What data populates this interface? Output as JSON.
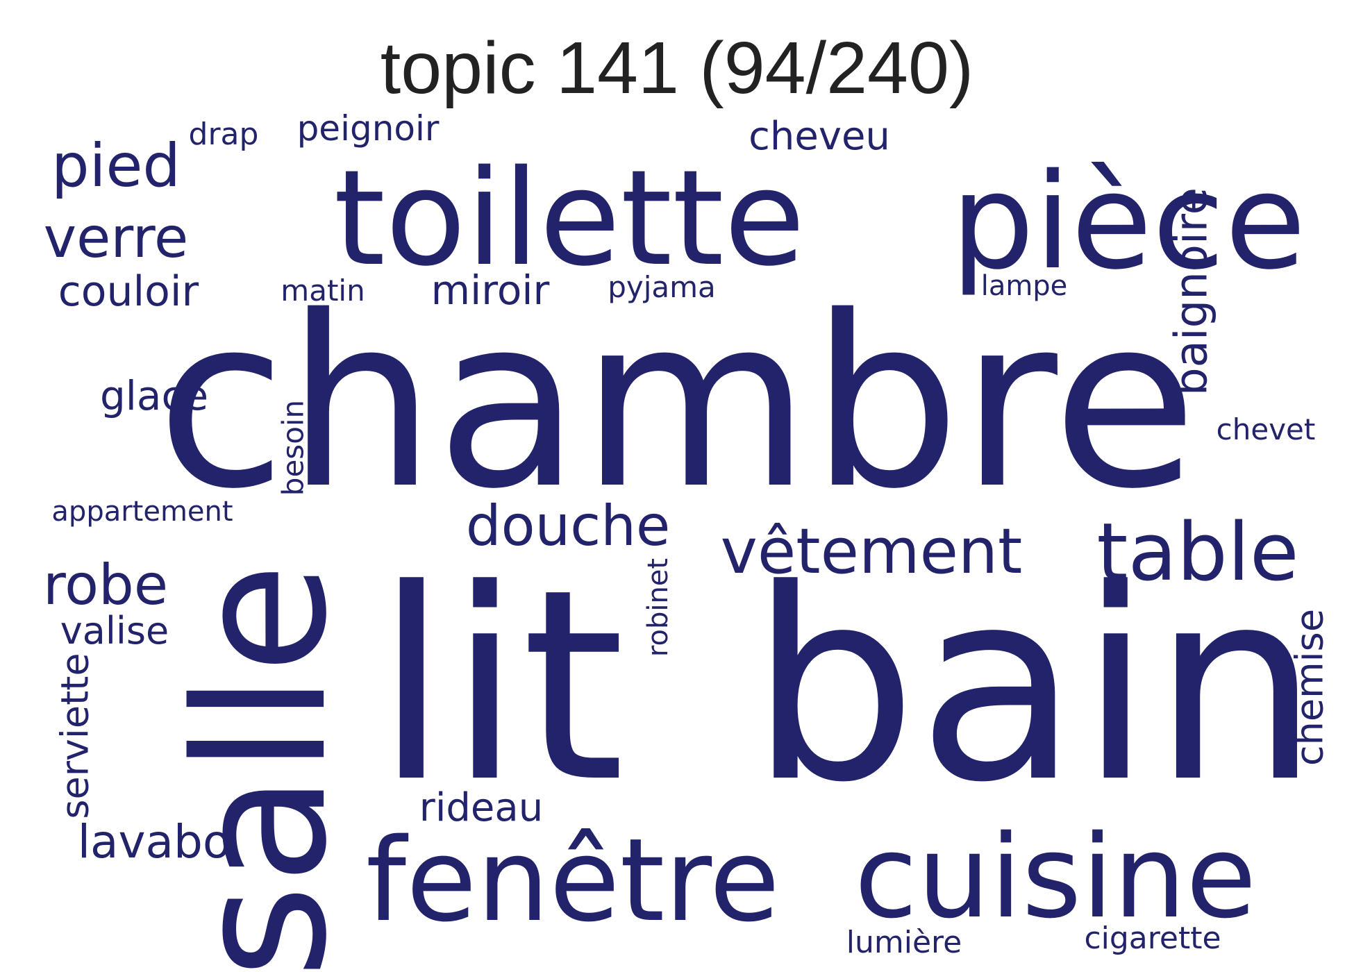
{
  "title": "topic 141 (94/240)",
  "word_color": "#23236b",
  "words": [
    {
      "text": "chambre",
      "orientation": "horizontal"
    },
    {
      "text": "lit",
      "orientation": "horizontal"
    },
    {
      "text": "bain",
      "orientation": "horizontal"
    },
    {
      "text": "salle",
      "orientation": "vertical"
    },
    {
      "text": "toilette",
      "orientation": "horizontal"
    },
    {
      "text": "pièce",
      "orientation": "horizontal"
    },
    {
      "text": "fenêtre",
      "orientation": "horizontal"
    },
    {
      "text": "cuisine",
      "orientation": "horizontal"
    },
    {
      "text": "table",
      "orientation": "horizontal"
    },
    {
      "text": "vêtement",
      "orientation": "horizontal"
    },
    {
      "text": "douche",
      "orientation": "horizontal"
    },
    {
      "text": "pied",
      "orientation": "horizontal"
    },
    {
      "text": "verre",
      "orientation": "horizontal"
    },
    {
      "text": "robe",
      "orientation": "horizontal"
    },
    {
      "text": "baignoire",
      "orientation": "horizontal"
    },
    {
      "text": "lavabo",
      "orientation": "vertical"
    },
    {
      "text": "couloir",
      "orientation": "horizontal"
    },
    {
      "text": "miroir",
      "orientation": "horizontal"
    },
    {
      "text": "cheveu",
      "orientation": "horizontal"
    },
    {
      "text": "glace",
      "orientation": "horizontal"
    },
    {
      "text": "valise",
      "orientation": "horizontal"
    },
    {
      "text": "rideau",
      "orientation": "horizontal"
    },
    {
      "text": "serviette",
      "orientation": "vertical"
    },
    {
      "text": "chemise",
      "orientation": "vertical"
    },
    {
      "text": "peignoir",
      "orientation": "horizontal"
    },
    {
      "text": "lumière",
      "orientation": "horizontal"
    },
    {
      "text": "cigarette",
      "orientation": "horizontal"
    },
    {
      "text": "drap",
      "orientation": "horizontal"
    },
    {
      "text": "matin",
      "orientation": "horizontal"
    },
    {
      "text": "pyjama",
      "orientation": "horizontal"
    },
    {
      "text": "lampe",
      "orientation": "horizontal"
    },
    {
      "text": "chevet",
      "orientation": "horizontal"
    },
    {
      "text": "besoin",
      "orientation": "vertical"
    },
    {
      "text": "robinet",
      "orientation": "vertical"
    },
    {
      "text": "appartement",
      "orientation": "horizontal"
    }
  ]
}
